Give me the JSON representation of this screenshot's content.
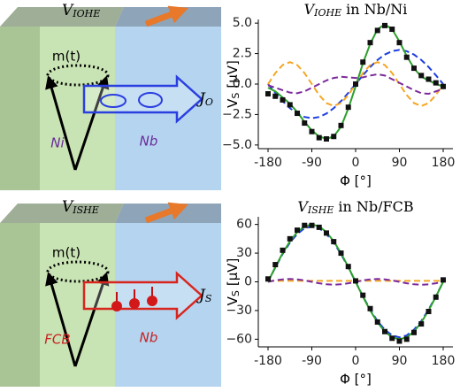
{
  "diagrams": [
    {
      "label_var": "V",
      "label_sub": "IOHE",
      "moment": "m(t)",
      "left": "Ni",
      "right": "Nb",
      "current_var": "J",
      "current_sub": "O"
    },
    {
      "label_var": "V",
      "label_sub": "ISHE",
      "moment": "m(t)",
      "left": "FCB",
      "right": "Nb",
      "current_var": "J",
      "current_sub": "S"
    }
  ],
  "chart_data": [
    {
      "type": "line",
      "title_var": "V",
      "title_sub": "IOHE",
      "title_rest": "in Nb/Ni",
      "xlabel": "Φ [°]",
      "ylabel_var": "V",
      "ylabel_sub": "S",
      "ylabel_rest": "[μV]",
      "x": [
        -180,
        -165,
        -150,
        -135,
        -120,
        -105,
        -90,
        -75,
        -60,
        -45,
        -30,
        -15,
        0,
        15,
        30,
        45,
        60,
        75,
        90,
        105,
        120,
        135,
        150,
        165,
        180
      ],
      "xlim": [
        -200,
        200
      ],
      "xticks": [
        -180,
        -90,
        0,
        90,
        180
      ],
      "ylim": [
        -5.3,
        5.3
      ],
      "yticks": [
        {
          "value": -5,
          "label": "−5.0"
        },
        {
          "value": -2.5,
          "label": "−2.5"
        },
        {
          "value": 0,
          "label": "0.0"
        },
        {
          "value": 2.5,
          "label": "2.5"
        },
        {
          "value": 5,
          "label": "5.0"
        }
      ],
      "series": [
        {
          "color": "#1f3fe0",
          "style": "dashed",
          "values": [
            0,
            -0.72,
            -1.4,
            -1.98,
            -2.42,
            -2.7,
            -2.8,
            -2.7,
            -2.42,
            -1.98,
            -1.4,
            -0.72,
            0,
            0.72,
            1.4,
            1.98,
            2.42,
            2.7,
            2.8,
            2.7,
            2.42,
            1.98,
            1.4,
            0.72,
            0
          ]
        },
        {
          "color": "#f5a623",
          "style": "dashed",
          "values": [
            0,
            0.9,
            1.56,
            1.8,
            1.56,
            0.9,
            0,
            -0.9,
            -1.56,
            -1.8,
            -1.56,
            -0.9,
            0,
            0.9,
            1.56,
            1.8,
            1.56,
            0.9,
            0,
            -0.9,
            -1.56,
            -1.8,
            -1.56,
            -0.9,
            0
          ]
        },
        {
          "color": "#7b2a9b",
          "style": "dashed",
          "values": [
            -0.1,
            -0.3,
            -0.5,
            -0.7,
            -0.75,
            -0.6,
            -0.3,
            0,
            0.3,
            0.5,
            0.6,
            0.55,
            0.5,
            0.55,
            0.7,
            0.8,
            0.7,
            0.4,
            0.1,
            -0.2,
            -0.5,
            -0.75,
            -0.8,
            -0.6,
            -0.4
          ]
        },
        {
          "color": "#2ca02c",
          "style": "solid",
          "values": [
            -0.3,
            -0.6,
            -1.1,
            -1.6,
            -2.3,
            -3.1,
            -3.8,
            -4.3,
            -4.5,
            -4.3,
            -3.5,
            -2.0,
            -0.2,
            1.7,
            3.3,
            4.5,
            4.9,
            4.5,
            3.5,
            2.3,
            1.3,
            0.6,
            0.3,
            0.0,
            -0.2
          ]
        },
        {
          "color": "#111111",
          "style": "markers",
          "values": [
            -0.8,
            -1.0,
            -1.3,
            -1.7,
            -2.4,
            -3.2,
            -3.9,
            -4.4,
            -4.5,
            -4.3,
            -3.4,
            -1.9,
            0.0,
            1.8,
            3.4,
            4.4,
            4.8,
            4.5,
            3.4,
            2.2,
            1.3,
            0.7,
            0.4,
            0.1,
            -0.2
          ]
        }
      ]
    },
    {
      "type": "line",
      "title_var": "V",
      "title_sub": "ISHE",
      "title_rest": "in Nb/FCB",
      "xlabel": "Φ [°]",
      "ylabel_var": "V",
      "ylabel_sub": "S",
      "ylabel_rest": "[μV]",
      "x": [
        -180,
        -165,
        -150,
        -135,
        -120,
        -105,
        -90,
        -75,
        -60,
        -45,
        -30,
        -15,
        0,
        15,
        30,
        45,
        60,
        75,
        90,
        105,
        120,
        135,
        150,
        165,
        180
      ],
      "xlim": [
        -200,
        200
      ],
      "xticks": [
        -180,
        -90,
        0,
        90,
        180
      ],
      "ylim": [
        -68,
        68
      ],
      "yticks": [
        {
          "value": -60,
          "label": "−60"
        },
        {
          "value": -30,
          "label": "−30"
        },
        0,
        30,
        60
      ],
      "series": [
        {
          "color": "#1f3fe0",
          "style": "dashed",
          "values": [
            0,
            15,
            29,
            41,
            50,
            56,
            58,
            56,
            50,
            41,
            29,
            15,
            0,
            -15,
            -29,
            -41,
            -50,
            -56,
            -58,
            -56,
            -50,
            -41,
            -29,
            -15,
            0
          ]
        },
        {
          "color": "#f5a623",
          "style": "dashed",
          "values": [
            1,
            1,
            1,
            1,
            1,
            1,
            1,
            1,
            1,
            1,
            1,
            1,
            1,
            1,
            1,
            1,
            1,
            1,
            1,
            1,
            1,
            1,
            1,
            1,
            1
          ]
        },
        {
          "color": "#7b2a9b",
          "style": "dashed",
          "values": [
            0,
            1.5,
            2.6,
            3,
            2.6,
            1.5,
            0,
            -1.5,
            -2.6,
            -3,
            -2.6,
            -1.5,
            0,
            1.5,
            2.6,
            3,
            2.6,
            1.5,
            0,
            -1.5,
            -2.6,
            -3,
            -2.6,
            -1.5,
            0
          ]
        },
        {
          "color": "#2ca02c",
          "style": "solid",
          "values": [
            0,
            15.5,
            30,
            42.4,
            52,
            58,
            60,
            58,
            52,
            42.4,
            30,
            15.5,
            0,
            -15.5,
            -30,
            -42.4,
            -52,
            -58,
            -60,
            -58,
            -52,
            -42.4,
            -30,
            -15.5,
            0
          ]
        },
        {
          "color": "#111111",
          "style": "markers",
          "values": [
            3,
            18,
            33,
            45,
            54,
            59,
            59,
            57,
            51,
            42,
            30,
            16,
            1,
            -14,
            -28,
            -42,
            -52,
            -59,
            -62,
            -60,
            -53,
            -44,
            -31,
            -16,
            2
          ]
        }
      ]
    }
  ]
}
